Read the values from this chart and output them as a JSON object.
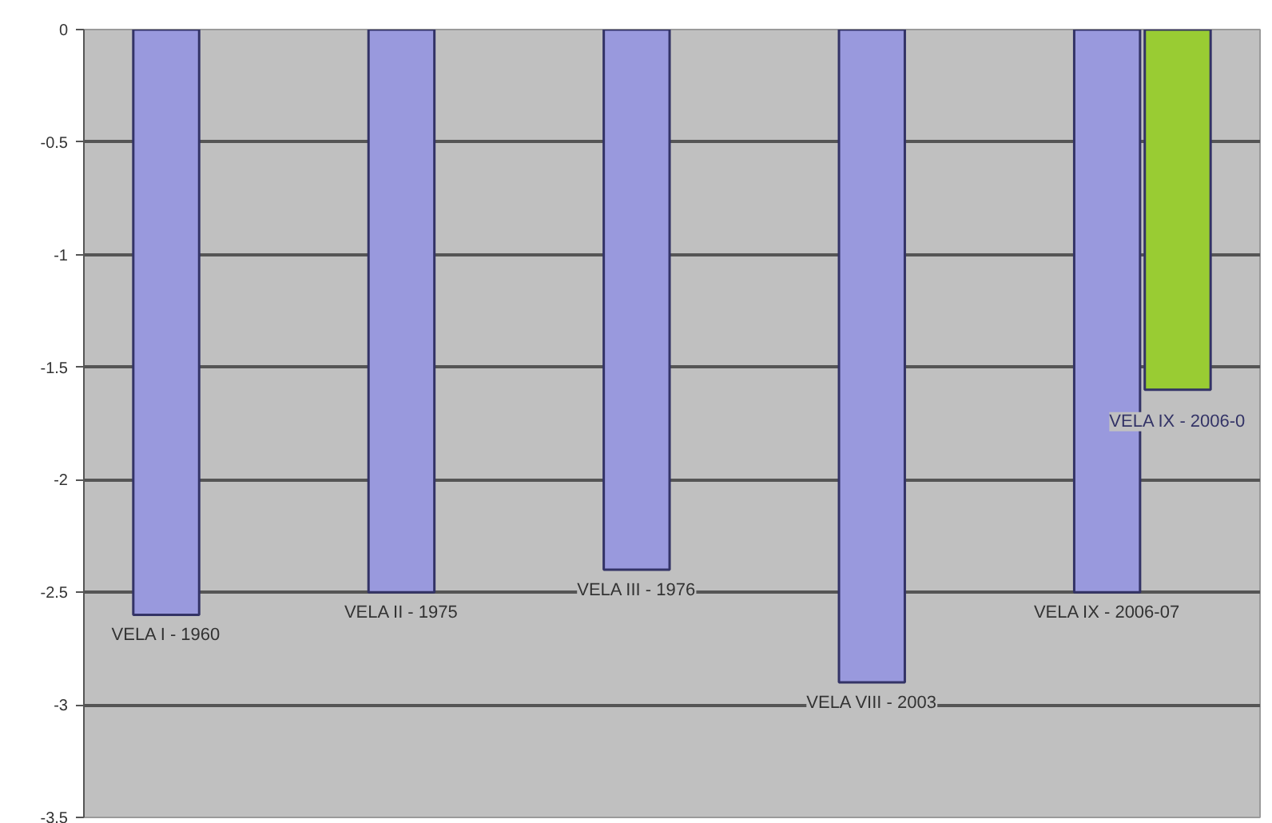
{
  "chart_data": {
    "type": "bar",
    "categories": [
      "VELA I - 1960",
      "VELA II - 1975",
      "VELA III - 1976",
      "VELA VIII - 2003",
      "VELA IX - 2006-07"
    ],
    "series": [
      {
        "color": "#9999dd",
        "values": [
          -2.6,
          -2.5,
          -2.4,
          -2.9,
          -2.5
        ]
      },
      {
        "color": "#99cc33",
        "values": [
          null,
          null,
          null,
          null,
          -1.6
        ]
      }
    ],
    "ylim": [
      -3.5,
      0
    ],
    "yticks": [
      0,
      -0.5,
      -1,
      -1.5,
      -2,
      -2.5,
      -3,
      -3.5
    ],
    "annotations": [
      "VELA IX - 2006-0"
    ],
    "grid": "y",
    "tick_labels": "y"
  }
}
